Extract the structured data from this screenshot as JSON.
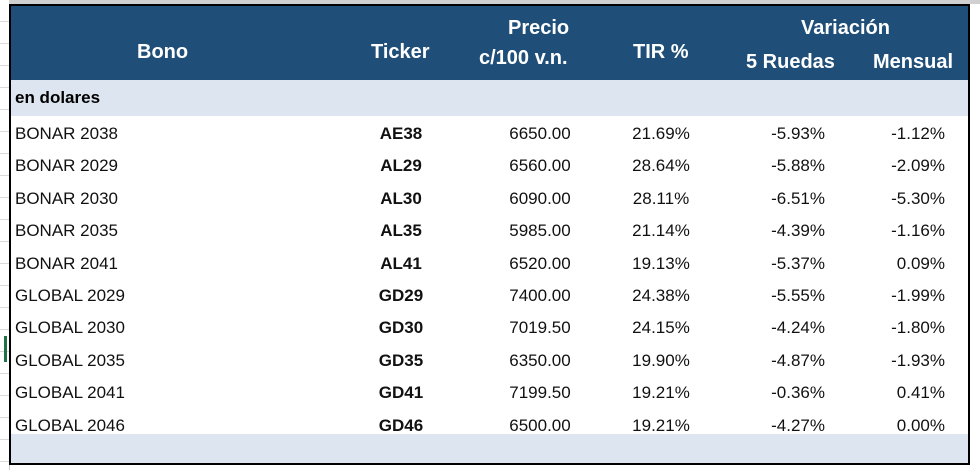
{
  "header": {
    "bono": "Bono",
    "ticker": "Ticker",
    "precio_line1": "Precio",
    "precio_line2": "c/100 v.n.",
    "tir": "TIR %",
    "variacion": "Variación",
    "ruedas": "5 Ruedas",
    "mensual": "Mensual"
  },
  "section_label": "en dolares",
  "colors": {
    "header_bg": "#1f4e79",
    "band_bg": "#dde6f0"
  },
  "rows": [
    {
      "bono": "BONAR 2038",
      "ticker": "AE38",
      "precio": "6650.00",
      "tir": "21.69%",
      "ruedas": "-5.93%",
      "mensual": "-1.12%"
    },
    {
      "bono": "BONAR 2029",
      "ticker": "AL29",
      "precio": "6560.00",
      "tir": "28.64%",
      "ruedas": "-5.88%",
      "mensual": "-2.09%"
    },
    {
      "bono": "BONAR 2030",
      "ticker": "AL30",
      "precio": "6090.00",
      "tir": "28.11%",
      "ruedas": "-6.51%",
      "mensual": "-5.30%"
    },
    {
      "bono": "BONAR 2035",
      "ticker": "AL35",
      "precio": "5985.00",
      "tir": "21.14%",
      "ruedas": "-4.39%",
      "mensual": "-1.16%"
    },
    {
      "bono": "BONAR 2041",
      "ticker": "AL41",
      "precio": "6520.00",
      "tir": "19.13%",
      "ruedas": "-5.37%",
      "mensual": "0.09%"
    },
    {
      "bono": "GLOBAL 2029",
      "ticker": "GD29",
      "precio": "7400.00",
      "tir": "24.38%",
      "ruedas": "-5.55%",
      "mensual": "-1.99%"
    },
    {
      "bono": "GLOBAL 2030",
      "ticker": "GD30",
      "precio": "7019.50",
      "tir": "24.15%",
      "ruedas": "-4.24%",
      "mensual": "-1.80%"
    },
    {
      "bono": "GLOBAL 2035",
      "ticker": "GD35",
      "precio": "6350.00",
      "tir": "19.90%",
      "ruedas": "-4.87%",
      "mensual": "-1.93%"
    },
    {
      "bono": "GLOBAL 2041",
      "ticker": "GD41",
      "precio": "7199.50",
      "tir": "19.21%",
      "ruedas": "-0.36%",
      "mensual": "0.41%"
    },
    {
      "bono": "GLOBAL 2046",
      "ticker": "GD46",
      "precio": "6500.00",
      "tir": "19.21%",
      "ruedas": "-4.27%",
      "mensual": "0.00%"
    }
  ]
}
